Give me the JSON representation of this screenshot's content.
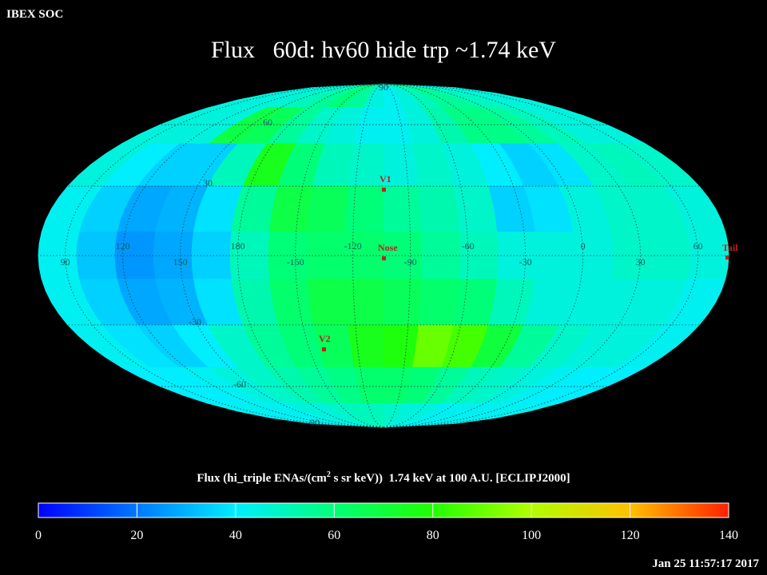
{
  "header": {
    "label": "IBEX SOC"
  },
  "footer": {
    "timestamp": "Jan 25 11:57:17 2017"
  },
  "chart_data": {
    "type": "skymap",
    "title": "Flux   60d: hv60 hide trp ~1.74 keV",
    "colorbar_label": [
      "Flux (hi_triple ENAs/(cm",
      "2",
      " s sr keV))  1.74 keV at 100 A.U. [ECLIPJ2000]"
    ],
    "clim": [
      0,
      140
    ],
    "cticks": [
      0,
      20,
      40,
      60,
      80,
      100,
      120,
      140
    ],
    "colormap": [
      "#0000ff",
      "#0078ff",
      "#00eeff",
      "#00ff78",
      "#20ff00",
      "#b0ff00",
      "#ffc000",
      "#ff2000"
    ],
    "lon_labels": [
      60,
      30,
      0,
      -30,
      -60,
      -90,
      -120,
      -150,
      180,
      150,
      120,
      90
    ],
    "lat_labels": [
      90,
      60,
      30,
      -30,
      -60,
      -90
    ],
    "markers": [
      "V1",
      "Nose",
      "V2",
      "Tail"
    ],
    "values": [
      [
        45,
        45,
        45,
        48,
        50,
        55,
        60,
        55,
        45,
        42,
        45,
        50,
        55,
        55,
        50,
        48,
        45,
        45
      ],
      [
        45,
        45,
        45,
        68,
        65,
        55,
        48,
        45,
        42,
        42,
        45,
        52,
        58,
        58,
        55,
        50,
        45,
        45
      ],
      [
        45,
        40,
        35,
        35,
        50,
        75,
        60,
        50,
        48,
        45,
        48,
        45,
        40,
        35,
        38,
        48,
        50,
        48
      ],
      [
        42,
        35,
        28,
        30,
        38,
        55,
        68,
        65,
        60,
        55,
        52,
        48,
        35,
        38,
        45,
        48,
        48,
        45
      ],
      [
        42,
        33,
        25,
        28,
        35,
        50,
        60,
        62,
        62,
        60,
        55,
        50,
        45,
        45,
        45,
        48,
        48,
        45
      ],
      [
        42,
        35,
        28,
        30,
        38,
        52,
        62,
        68,
        68,
        65,
        62,
        60,
        50,
        45,
        45,
        45,
        45,
        42
      ],
      [
        42,
        38,
        35,
        40,
        48,
        55,
        60,
        65,
        75,
        78,
        90,
        85,
        70,
        55,
        48,
        45,
        45,
        42
      ],
      [
        40,
        40,
        42,
        45,
        48,
        52,
        55,
        58,
        62,
        62,
        60,
        55,
        50,
        48,
        45,
        42,
        40,
        40
      ],
      [
        42,
        42,
        42,
        42,
        45,
        45,
        48,
        50,
        50,
        48,
        45,
        45,
        42,
        42,
        42,
        42,
        42,
        42
      ]
    ]
  }
}
